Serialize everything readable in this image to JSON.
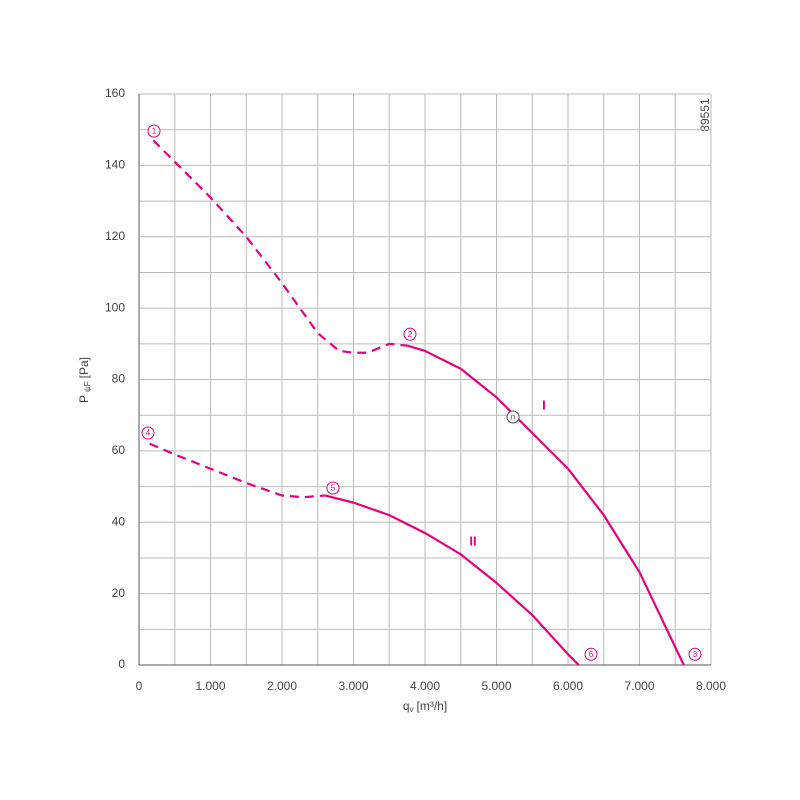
{
  "chart_data": {
    "type": "line",
    "ylabel": {
      "main": "P",
      "sub": "ψF",
      "unit": "[Pa]"
    },
    "xlabel": {
      "main": "q",
      "sub": "v",
      "unit": "[m³/h]"
    },
    "code": "89551",
    "xlim": [
      0,
      8000
    ],
    "ylim": [
      0,
      160
    ],
    "xticks": [
      {
        "value": 0,
        "label": "0"
      },
      {
        "value": 1000,
        "label": "1.000"
      },
      {
        "value": 2000,
        "label": "2.000"
      },
      {
        "value": 3000,
        "label": "3.000"
      },
      {
        "value": 4000,
        "label": "4.000"
      },
      {
        "value": 5000,
        "label": "5.000"
      },
      {
        "value": 6000,
        "label": "6.000"
      },
      {
        "value": 7000,
        "label": "7.000"
      },
      {
        "value": 8000,
        "label": "8.000"
      }
    ],
    "yticks": [
      0,
      20,
      40,
      60,
      80,
      100,
      120,
      140,
      160
    ],
    "grid": true,
    "curves": [
      {
        "name": "I",
        "color": "#e6007e",
        "label_x": 5664,
        "label_y": 72.5,
        "segments": [
          {
            "style": "dashed",
            "x": [
              200,
              500,
              1000,
              1500,
              2000,
              2500,
              2800,
              3000,
              3200,
              3500,
              3750
            ],
            "values": [
              147,
              141,
              131,
              120,
              107,
              93,
              88,
              87.5,
              87.5,
              90,
              89.5
            ]
          },
          {
            "style": "solid",
            "x": [
              3750,
              4000,
              4500,
              5000,
              5200,
              5500,
              6000,
              6500,
              7000,
              7500,
              7620
            ],
            "values": [
              89.5,
              88,
              83,
              75,
              71,
              65,
              55,
              42,
              26,
              5,
              0
            ]
          }
        ]
      },
      {
        "name": "II",
        "color": "#e6007e",
        "label_x": 4671,
        "label_y": 34.5,
        "segments": [
          {
            "style": "dashed",
            "x": [
              150,
              500,
              1000,
              1500,
              2000,
              2300,
              2600
            ],
            "values": [
              62,
              59,
              55,
              51,
              47.5,
              47,
              47.5
            ]
          },
          {
            "style": "solid",
            "x": [
              2600,
              3000,
              3500,
              4000,
              4500,
              5000,
              5500,
              6000,
              6150
            ],
            "values": [
              47.5,
              45.5,
              42,
              37,
              31,
              23,
              14,
              3,
              0
            ]
          }
        ]
      }
    ],
    "points": [
      {
        "label": "1",
        "x": 210,
        "y": 149.6,
        "color": "#e6007e"
      },
      {
        "label": "2",
        "x": 3790,
        "y": 92.7,
        "color": "#e6007e"
      },
      {
        "label": "3",
        "x": 7776,
        "y": 3,
        "color": "#e6007e"
      },
      {
        "label": "4",
        "x": 126,
        "y": 65,
        "color": "#e6007e"
      },
      {
        "label": "5",
        "x": 2713,
        "y": 49.6,
        "color": "#e6007e"
      },
      {
        "label": "6",
        "x": 6322,
        "y": 3,
        "color": "#e6007e"
      },
      {
        "label": "n",
        "x": 5231,
        "y": 69.5,
        "color": "#555555"
      }
    ]
  }
}
